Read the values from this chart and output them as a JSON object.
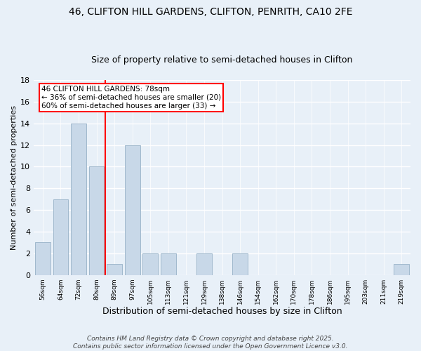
{
  "title1": "46, CLIFTON HILL GARDENS, CLIFTON, PENRITH, CA10 2FE",
  "title2": "Size of property relative to semi-detached houses in Clifton",
  "xlabel": "Distribution of semi-detached houses by size in Clifton",
  "ylabel": "Number of semi-detached properties",
  "categories": [
    "56sqm",
    "64sqm",
    "72sqm",
    "80sqm",
    "89sqm",
    "97sqm",
    "105sqm",
    "113sqm",
    "121sqm",
    "129sqm",
    "138sqm",
    "146sqm",
    "154sqm",
    "162sqm",
    "170sqm",
    "178sqm",
    "186sqm",
    "195sqm",
    "203sqm",
    "211sqm",
    "219sqm"
  ],
  "values": [
    3,
    7,
    14,
    10,
    1,
    12,
    2,
    2,
    0,
    2,
    0,
    2,
    0,
    0,
    0,
    0,
    0,
    0,
    0,
    0,
    1
  ],
  "bar_color": "#c8d8e8",
  "bar_edge_color": "#a0b8cc",
  "vline_color": "red",
  "vline_x": 3.5,
  "annotation_box_text": "46 CLIFTON HILL GARDENS: 78sqm\n← 36% of semi-detached houses are smaller (20)\n60% of semi-detached houses are larger (33) →",
  "annotation_box_color": "red",
  "ylim": [
    0,
    18
  ],
  "yticks": [
    0,
    2,
    4,
    6,
    8,
    10,
    12,
    14,
    16,
    18
  ],
  "footer": "Contains HM Land Registry data © Crown copyright and database right 2025.\nContains public sector information licensed under the Open Government Licence v3.0.",
  "bg_color": "#e8f0f8",
  "grid_color": "#ffffff",
  "title1_fontsize": 10,
  "title2_fontsize": 9,
  "xlabel_fontsize": 9,
  "ylabel_fontsize": 8,
  "footer_fontsize": 6.5
}
